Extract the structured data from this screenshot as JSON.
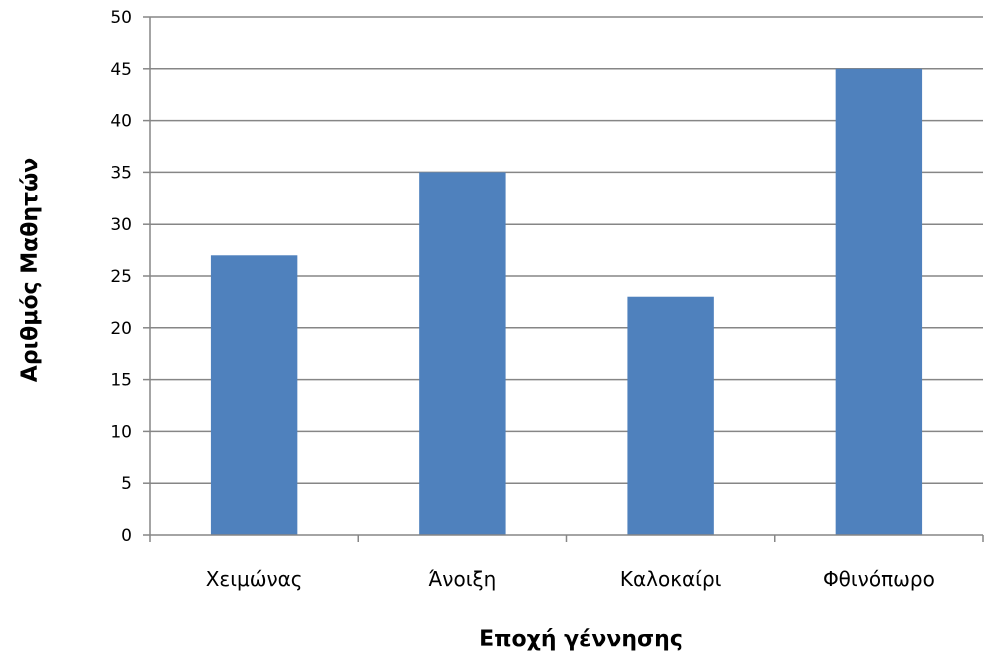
{
  "chart_data": {
    "type": "bar",
    "title": "",
    "xlabel": "Εποχή γέννησης",
    "ylabel": "Αριθμός Μαθητών",
    "categories": [
      "Χειμώνας",
      "Άνοιξη",
      "Καλοκαίρι",
      "Φθινόπωρο"
    ],
    "values": [
      27,
      35,
      23,
      45
    ],
    "ylim": [
      0,
      50
    ],
    "ytick_step": 5,
    "grid": true,
    "legend": "none",
    "colors": {
      "bar": "#4f81bd",
      "grid": "#868686",
      "axis": "#868686"
    }
  }
}
